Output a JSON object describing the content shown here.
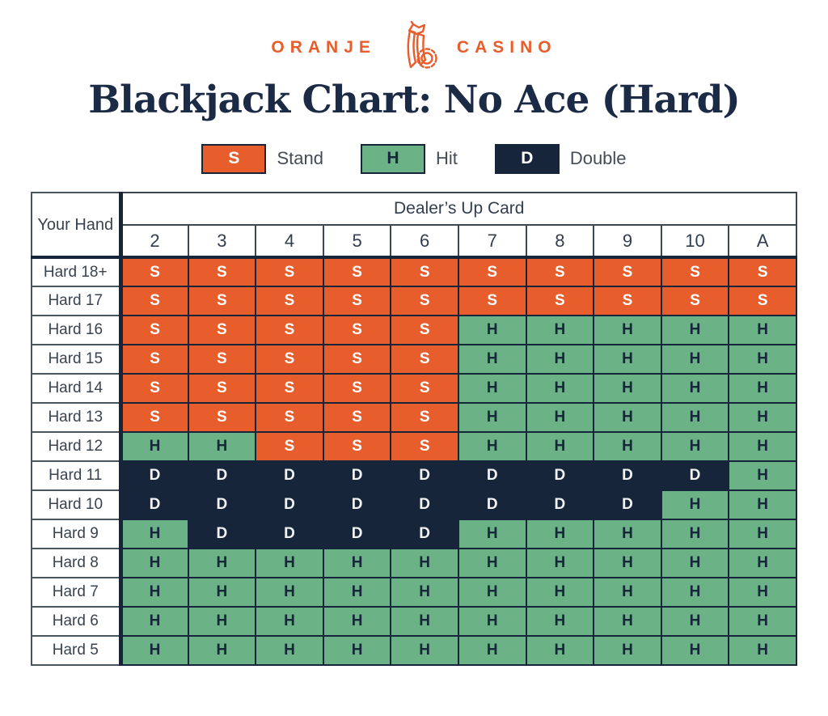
{
  "logo": {
    "left": "ORANJE",
    "right": "CASINO"
  },
  "title": "Blackjack Chart: No Ace (Hard)",
  "legend": [
    {
      "key": "S",
      "label": "Stand",
      "bg": "#e75d2c",
      "fg": "#ffffff"
    },
    {
      "key": "H",
      "label": "Hit",
      "bg": "#6bb286",
      "fg": "#17263a"
    },
    {
      "key": "D",
      "label": "Double",
      "bg": "#17253a",
      "fg": "#ffffff"
    }
  ],
  "colors": {
    "accent_orange": "#e75d2c",
    "hit_green": "#6bb286",
    "navy": "#17253a",
    "title_navy": "#1c2b45"
  },
  "chart_data": {
    "type": "table",
    "title": "Blackjack Chart: No Ace (Hard)",
    "corner_label": "Your Hand",
    "group_header": "Dealer’s Up Card",
    "columns": [
      "2",
      "3",
      "4",
      "5",
      "6",
      "7",
      "8",
      "9",
      "10",
      "A"
    ],
    "action_legend": {
      "S": "Stand",
      "H": "Hit",
      "D": "Double"
    },
    "rows": [
      {
        "label": "Hard 18+",
        "actions": [
          "S",
          "S",
          "S",
          "S",
          "S",
          "S",
          "S",
          "S",
          "S",
          "S"
        ]
      },
      {
        "label": "Hard 17",
        "actions": [
          "S",
          "S",
          "S",
          "S",
          "S",
          "S",
          "S",
          "S",
          "S",
          "S"
        ]
      },
      {
        "label": "Hard 16",
        "actions": [
          "S",
          "S",
          "S",
          "S",
          "S",
          "H",
          "H",
          "H",
          "H",
          "H"
        ]
      },
      {
        "label": "Hard 15",
        "actions": [
          "S",
          "S",
          "S",
          "S",
          "S",
          "H",
          "H",
          "H",
          "H",
          "H"
        ]
      },
      {
        "label": "Hard 14",
        "actions": [
          "S",
          "S",
          "S",
          "S",
          "S",
          "H",
          "H",
          "H",
          "H",
          "H"
        ]
      },
      {
        "label": "Hard 13",
        "actions": [
          "S",
          "S",
          "S",
          "S",
          "S",
          "H",
          "H",
          "H",
          "H",
          "H"
        ]
      },
      {
        "label": "Hard 12",
        "actions": [
          "H",
          "H",
          "S",
          "S",
          "S",
          "H",
          "H",
          "H",
          "H",
          "H"
        ]
      },
      {
        "label": "Hard 11",
        "actions": [
          "D",
          "D",
          "D",
          "D",
          "D",
          "D",
          "D",
          "D",
          "D",
          "H"
        ]
      },
      {
        "label": "Hard 10",
        "actions": [
          "D",
          "D",
          "D",
          "D",
          "D",
          "D",
          "D",
          "D",
          "H",
          "H"
        ]
      },
      {
        "label": "Hard 9",
        "actions": [
          "H",
          "D",
          "D",
          "D",
          "D",
          "H",
          "H",
          "H",
          "H",
          "H"
        ]
      },
      {
        "label": "Hard 8",
        "actions": [
          "H",
          "H",
          "H",
          "H",
          "H",
          "H",
          "H",
          "H",
          "H",
          "H"
        ]
      },
      {
        "label": "Hard 7",
        "actions": [
          "H",
          "H",
          "H",
          "H",
          "H",
          "H",
          "H",
          "H",
          "H",
          "H"
        ]
      },
      {
        "label": "Hard 6",
        "actions": [
          "H",
          "H",
          "H",
          "H",
          "H",
          "H",
          "H",
          "H",
          "H",
          "H"
        ]
      },
      {
        "label": "Hard 5",
        "actions": [
          "H",
          "H",
          "H",
          "H",
          "H",
          "H",
          "H",
          "H",
          "H",
          "H"
        ]
      }
    ]
  }
}
